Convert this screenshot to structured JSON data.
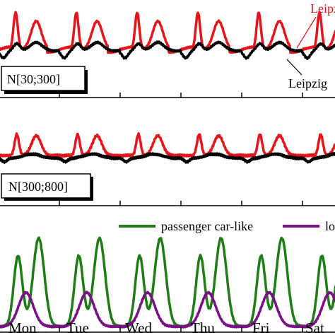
{
  "chart_data": [
    {
      "type": "line",
      "panel_label": "N[30;300]",
      "series": [
        {
          "name": "Leipzig",
          "label_shown": "Leipz",
          "color": "#e8141c"
        },
        {
          "name": "Leipzig",
          "label_shown": "Leipzig",
          "color": "#000000"
        }
      ],
      "grid": false
    },
    {
      "type": "line",
      "panel_label": "N[300;800]",
      "series": [
        {
          "color": "#e8141c"
        },
        {
          "color": "#000000"
        }
      ],
      "grid": false
    },
    {
      "type": "line",
      "series": [
        {
          "name": "passenger car-like",
          "color": "#1e7d14"
        },
        {
          "name": "lo",
          "color": "#7a0f87"
        }
      ],
      "legend": "top-right",
      "grid": false
    }
  ],
  "x_axis": {
    "unit": "day",
    "range": [
      0,
      6.6
    ],
    "tick_labels": [
      "Mon",
      "Tue",
      "Wed",
      "Thu",
      "Fri",
      "Sat"
    ]
  }
}
